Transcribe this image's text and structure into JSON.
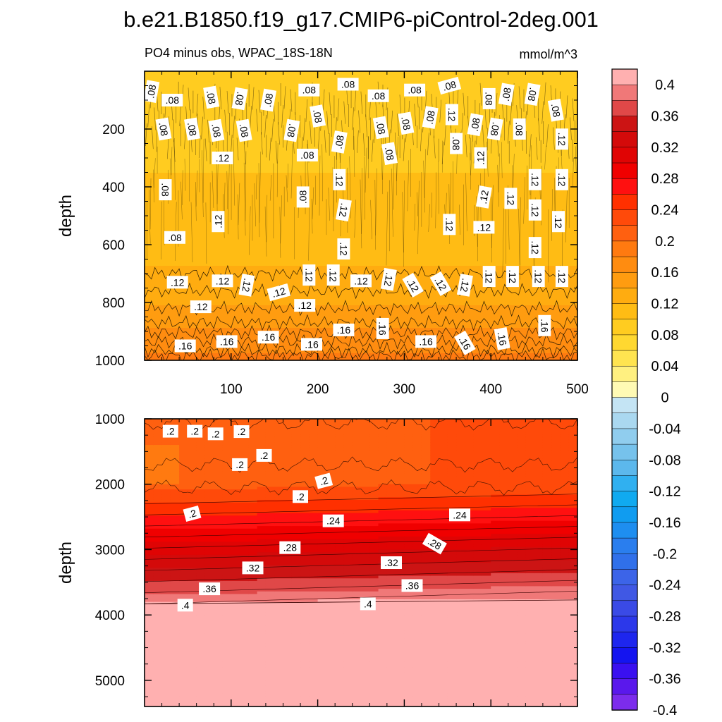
{
  "colors": {
    "cb_levels": [
      0.4,
      0.38,
      0.36,
      0.34,
      0.32,
      0.3,
      0.28,
      0.26,
      0.24,
      0.22,
      0.2,
      0.18,
      0.16,
      0.14,
      0.12,
      0.1,
      0.08,
      0.06,
      0.04,
      0.02,
      0.0,
      -0.02,
      -0.04,
      -0.06,
      -0.08,
      -0.1,
      -0.12,
      -0.14,
      -0.16,
      -0.18,
      -0.2,
      -0.22,
      -0.24,
      -0.26,
      -0.28,
      -0.3,
      -0.32,
      -0.34,
      -0.36,
      -0.38,
      -0.4
    ],
    "cb_colors": [
      "#ffb0b0",
      "#f07878",
      "#e04848",
      "#cc1414",
      "#d40a0a",
      "#e00404",
      "#f00000",
      "#ff1010",
      "#ff3000",
      "#ff4a0a",
      "#ff6010",
      "#ff7a10",
      "#ff8c10",
      "#ff9c10",
      "#ffac10",
      "#ffbc14",
      "#ffcc20",
      "#ffd830",
      "#ffe450",
      "#fff080",
      "#fffab4",
      "#c4e4f4",
      "#aad8f0",
      "#90cdee",
      "#76c2ec",
      "#5cb8ec",
      "#30b0f0",
      "#10aaf0",
      "#109cf0",
      "#1e8ef0",
      "#2a7eee",
      "#3070ea",
      "#3c64e8",
      "#4058e4",
      "#3a4ae6",
      "#2c38ea",
      "#1e26ee",
      "#1414f0",
      "#3a10f0",
      "#5a18ec",
      "#7c2cec"
    ]
  },
  "chart_data": {
    "type": "heatmap",
    "title": "b.e21.B1850.f19_g17.CMIP6-piControl-2deg.001",
    "subtitle_left": "PO4 minus obs, WPAC_18S-18N",
    "subtitle_right": "mmol/m^3",
    "colorbar": {
      "tick_labels": [
        "0.4",
        "0.36",
        "0.32",
        "0.28",
        "0.24",
        "0.2",
        "0.16",
        "0.12",
        "0.08",
        "0.04",
        "0",
        "-0.04",
        "-0.08",
        "-0.12",
        "-0.16",
        "-0.2",
        "-0.24",
        "-0.28",
        "-0.32",
        "-0.36",
        "-0.4"
      ],
      "range": [
        -0.4,
        0.4
      ],
      "interval": 0.02
    },
    "panels": [
      {
        "name": "upper",
        "ylabel": "depth",
        "xlabel": "",
        "x_range": [
          0,
          500
        ],
        "y_range": [
          0,
          1000
        ],
        "x_ticks": [
          "100",
          "200",
          "300",
          "400",
          "500"
        ],
        "y_ticks": [
          "200",
          "400",
          "600",
          "800",
          "1000"
        ],
        "value_profile": {
          "depth": [
            0,
            100,
            200,
            300,
            400,
            500,
            600,
            700,
            800,
            850,
            900,
            950,
            1000
          ],
          "value": [
            0.085,
            0.08,
            0.07,
            0.085,
            0.095,
            0.1,
            0.1,
            0.115,
            0.13,
            0.14,
            0.155,
            0.165,
            0.175
          ]
        },
        "contour_labels": [
          {
            "text": ".08",
            "x": 8,
            "y": 70,
            "rot": -80
          },
          {
            "text": ".08",
            "x": 32,
            "y": 100,
            "rot": 0
          },
          {
            "text": ".08",
            "x": 77,
            "y": 90,
            "rot": 80
          },
          {
            "text": ".08",
            "x": 110,
            "y": 95,
            "rot": 100
          },
          {
            "text": ".08",
            "x": 143,
            "y": 100,
            "rot": -80
          },
          {
            "text": ".08",
            "x": 190,
            "y": 65,
            "rot": 0
          },
          {
            "text": ".08",
            "x": 235,
            "y": 45,
            "rot": 0
          },
          {
            "text": ".08",
            "x": 270,
            "y": 85,
            "rot": 0
          },
          {
            "text": ".08",
            "x": 312,
            "y": 65,
            "rot": 0
          },
          {
            "text": ".08",
            "x": 352,
            "y": 50,
            "rot": -15
          },
          {
            "text": ".08",
            "x": 398,
            "y": 95,
            "rot": 90
          },
          {
            "text": ".08",
            "x": 418,
            "y": 80,
            "rot": -80
          },
          {
            "text": ".08",
            "x": 448,
            "y": 80,
            "rot": 100
          },
          {
            "text": ".08",
            "x": 22,
            "y": 200,
            "rot": 80
          },
          {
            "text": ".08",
            "x": 55,
            "y": 200,
            "rot": 80
          },
          {
            "text": ".08",
            "x": 83,
            "y": 205,
            "rot": 80
          },
          {
            "text": ".08",
            "x": 115,
            "y": 205,
            "rot": 80
          },
          {
            "text": ".08",
            "x": 170,
            "y": 205,
            "rot": 100
          },
          {
            "text": ".08",
            "x": 200,
            "y": 155,
            "rot": 80
          },
          {
            "text": ".08",
            "x": 273,
            "y": 195,
            "rot": 80
          },
          {
            "text": ".08",
            "x": 302,
            "y": 180,
            "rot": 80
          },
          {
            "text": ".08",
            "x": 330,
            "y": 160,
            "rot": -80
          },
          {
            "text": ".08",
            "x": 382,
            "y": 185,
            "rot": -80
          },
          {
            "text": ".08",
            "x": 405,
            "y": 200,
            "rot": 100
          },
          {
            "text": ".08",
            "x": 433,
            "y": 200,
            "rot": 90
          },
          {
            "text": ".08",
            "x": 475,
            "y": 135,
            "rot": 80
          },
          {
            "text": ".08",
            "x": 225,
            "y": 245,
            "rot": -80
          },
          {
            "text": ".08",
            "x": 283,
            "y": 285,
            "rot": 80
          },
          {
            "text": ".08",
            "x": 188,
            "y": 290,
            "rot": 0
          },
          {
            "text": ".08",
            "x": 24,
            "y": 410,
            "rot": 90
          },
          {
            "text": ".08",
            "x": 183,
            "y": 435,
            "rot": -90
          },
          {
            "text": ".08",
            "x": 35,
            "y": 575,
            "rot": 0
          },
          {
            "text": ".12",
            "x": 355,
            "y": 150,
            "rot": 90
          },
          {
            "text": ".08",
            "x": 360,
            "y": 250,
            "rot": 90
          },
          {
            "text": ".12",
            "x": 482,
            "y": 235,
            "rot": 90
          },
          {
            "text": ".12",
            "x": 90,
            "y": 300,
            "rot": 0
          },
          {
            "text": ".12",
            "x": 388,
            "y": 300,
            "rot": -90
          },
          {
            "text": ".12",
            "x": 225,
            "y": 375,
            "rot": 90
          },
          {
            "text": ".12",
            "x": 451,
            "y": 375,
            "rot": 90
          },
          {
            "text": ".12",
            "x": 482,
            "y": 375,
            "rot": 90
          },
          {
            "text": ".12",
            "x": 85,
            "y": 520,
            "rot": -90
          },
          {
            "text": ".12",
            "x": 230,
            "y": 480,
            "rot": 100
          },
          {
            "text": ".12",
            "x": 392,
            "y": 435,
            "rot": -80
          },
          {
            "text": ".12",
            "x": 423,
            "y": 440,
            "rot": 90
          },
          {
            "text": ".12",
            "x": 451,
            "y": 480,
            "rot": 90
          },
          {
            "text": ".12",
            "x": 478,
            "y": 520,
            "rot": 90
          },
          {
            "text": ".12",
            "x": 352,
            "y": 530,
            "rot": 90
          },
          {
            "text": ".12",
            "x": 392,
            "y": 540,
            "rot": 0
          },
          {
            "text": ".12",
            "x": 230,
            "y": 615,
            "rot": 90
          },
          {
            "text": ".12",
            "x": 451,
            "y": 610,
            "rot": 90
          },
          {
            "text": ".12",
            "x": 38,
            "y": 730,
            "rot": 0
          },
          {
            "text": ".12",
            "x": 90,
            "y": 725,
            "rot": 0
          },
          {
            "text": ".12",
            "x": 118,
            "y": 740,
            "rot": 100
          },
          {
            "text": ".12",
            "x": 155,
            "y": 765,
            "rot": -15
          },
          {
            "text": ".12",
            "x": 190,
            "y": 705,
            "rot": 90
          },
          {
            "text": ".12",
            "x": 218,
            "y": 705,
            "rot": 90
          },
          {
            "text": ".12",
            "x": 250,
            "y": 725,
            "rot": 0
          },
          {
            "text": ".12",
            "x": 282,
            "y": 720,
            "rot": 100
          },
          {
            "text": ".12",
            "x": 310,
            "y": 740,
            "rot": 60
          },
          {
            "text": ".12",
            "x": 342,
            "y": 735,
            "rot": 60
          },
          {
            "text": ".12",
            "x": 370,
            "y": 740,
            "rot": 100
          },
          {
            "text": ".12",
            "x": 398,
            "y": 710,
            "rot": 90
          },
          {
            "text": ".12",
            "x": 425,
            "y": 710,
            "rot": 90
          },
          {
            "text": ".12",
            "x": 455,
            "y": 710,
            "rot": 90
          },
          {
            "text": ".12",
            "x": 482,
            "y": 710,
            "rot": 90
          },
          {
            "text": ".12",
            "x": 65,
            "y": 815,
            "rot": 0
          },
          {
            "text": ".12",
            "x": 185,
            "y": 810,
            "rot": 0
          },
          {
            "text": ".16",
            "x": 47,
            "y": 950,
            "rot": 0
          },
          {
            "text": ".16",
            "x": 95,
            "y": 935,
            "rot": 0
          },
          {
            "text": ".16",
            "x": 143,
            "y": 920,
            "rot": 0
          },
          {
            "text": ".16",
            "x": 193,
            "y": 945,
            "rot": 0
          },
          {
            "text": ".16",
            "x": 230,
            "y": 895,
            "rot": 0
          },
          {
            "text": ".16",
            "x": 275,
            "y": 890,
            "rot": 90
          },
          {
            "text": ".16",
            "x": 325,
            "y": 935,
            "rot": 0
          },
          {
            "text": ".16",
            "x": 370,
            "y": 940,
            "rot": 60
          },
          {
            "text": ".16",
            "x": 413,
            "y": 925,
            "rot": 80
          },
          {
            "text": ".16",
            "x": 462,
            "y": 880,
            "rot": 90
          }
        ]
      },
      {
        "name": "lower",
        "ylabel": "depth",
        "xlabel": "",
        "x_range": [
          0,
          500
        ],
        "y_range": [
          1000,
          5400
        ],
        "x_ticks": [],
        "y_ticks": [
          "1000",
          "2000",
          "3000",
          "4000",
          "5000"
        ],
        "contour_labels": [
          {
            "text": ".2",
            "x": 30,
            "y": 1190,
            "rot": 0
          },
          {
            "text": ".2",
            "x": 58,
            "y": 1190,
            "rot": 0
          },
          {
            "text": ".2",
            "x": 82,
            "y": 1230,
            "rot": 0
          },
          {
            "text": ".2",
            "x": 112,
            "y": 1195,
            "rot": 0
          },
          {
            "text": ".2",
            "x": 138,
            "y": 1560,
            "rot": 0
          },
          {
            "text": ".2",
            "x": 110,
            "y": 1700,
            "rot": 0
          },
          {
            "text": ".2",
            "x": 207,
            "y": 1950,
            "rot": -15
          },
          {
            "text": ".2",
            "x": 180,
            "y": 2190,
            "rot": 0
          },
          {
            "text": ".2",
            "x": 55,
            "y": 2450,
            "rot": -15
          },
          {
            "text": ".24",
            "x": 218,
            "y": 2560,
            "rot": 0
          },
          {
            "text": ".24",
            "x": 364,
            "y": 2470,
            "rot": 0
          },
          {
            "text": ".28",
            "x": 168,
            "y": 2970,
            "rot": 0
          },
          {
            "text": ".28",
            "x": 335,
            "y": 2910,
            "rot": 30
          },
          {
            "text": ".32",
            "x": 125,
            "y": 3280,
            "rot": 0
          },
          {
            "text": ".32",
            "x": 285,
            "y": 3200,
            "rot": 0
          },
          {
            "text": ".36",
            "x": 75,
            "y": 3600,
            "rot": 0
          },
          {
            "text": ".36",
            "x": 309,
            "y": 3550,
            "rot": 0
          },
          {
            "text": ".4",
            "x": 47,
            "y": 3850,
            "rot": 0
          },
          {
            "text": ".4",
            "x": 258,
            "y": 3830,
            "rot": 0
          }
        ]
      }
    ]
  }
}
